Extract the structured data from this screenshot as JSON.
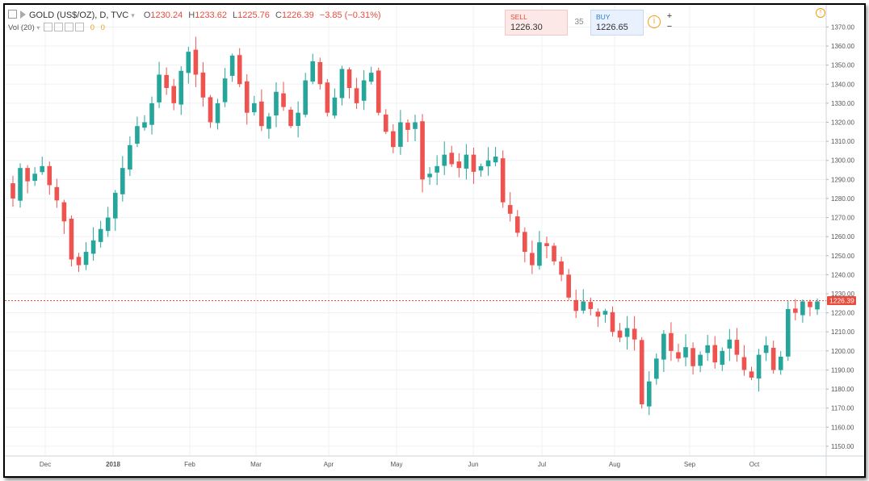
{
  "header": {
    "symbol": "GOLD (US$/OZ), D, TVC",
    "open_label": "O",
    "open": "1230.24",
    "high_label": "H",
    "high": "1233.62",
    "low_label": "L",
    "low": "1225.76",
    "close_label": "C",
    "close": "1226.39",
    "change": "−3.85 (−0.31%)"
  },
  "volume": {
    "label": "Vol (20)",
    "v1": "0",
    "v2": "0"
  },
  "trade": {
    "sell_label": "SELL",
    "sell_price": "1226.30",
    "spread": "35",
    "buy_label": "BUY",
    "buy_price": "1226.65",
    "info_icon": "info-icon",
    "zoom_in": "+",
    "zoom_out": "−"
  },
  "colors": {
    "up": "#26a69a",
    "down": "#ef5350",
    "price_line": "#e74c3c",
    "grid": "#eef1f4"
  },
  "chart_data": {
    "type": "candlestick",
    "title": "GOLD (US$/OZ), D, TVC",
    "ylim": [
      1147,
      1374
    ],
    "y_ticks": [
      1150,
      1160,
      1170,
      1180,
      1190,
      1200,
      1210,
      1220,
      1230,
      1240,
      1250,
      1260,
      1270,
      1280,
      1290,
      1300,
      1310,
      1320,
      1330,
      1340,
      1350,
      1360,
      1370
    ],
    "x_ticks": [
      "Dec",
      "2018",
      "Feb",
      "Mar",
      "Apr",
      "May",
      "Jun",
      "Jul",
      "Aug",
      "Sep",
      "Oct"
    ],
    "last_price": 1226.39,
    "last_price_label": "1226.39",
    "grid": true,
    "closes": [
      1280,
      1296,
      1289,
      1293,
      1297,
      1287,
      1279,
      1268,
      1248,
      1245,
      1252,
      1258,
      1264,
      1270,
      1283,
      1296,
      1308,
      1318,
      1320,
      1330,
      1345,
      1338,
      1330,
      1347,
      1357,
      1345,
      1333,
      1320,
      1330,
      1343,
      1355,
      1340,
      1325,
      1330,
      1318,
      1323,
      1336,
      1328,
      1318,
      1325,
      1342,
      1352,
      1340,
      1325,
      1333,
      1348,
      1338,
      1330,
      1342,
      1346,
      1325,
      1315,
      1307,
      1320,
      1316,
      1320,
      1290,
      1293,
      1297,
      1303,
      1298,
      1296,
      1303,
      1294,
      1297,
      1300,
      1302,
      1278,
      1272,
      1262,
      1252,
      1245,
      1257,
      1255,
      1247,
      1240,
      1228,
      1221,
      1226,
      1222,
      1218,
      1221,
      1210,
      1207,
      1212,
      1206,
      1172,
      1184,
      1196,
      1209,
      1200,
      1196,
      1202,
      1192,
      1198,
      1203,
      1194,
      1200,
      1206,
      1198,
      1190,
      1186,
      1198,
      1203,
      1190,
      1197,
      1222,
      1220,
      1226,
      1223,
      1226
    ]
  }
}
